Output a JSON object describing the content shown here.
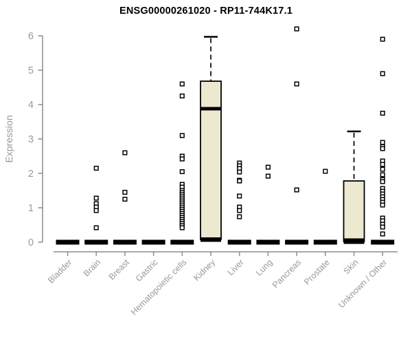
{
  "chart": {
    "title": "ENSG00000261020 - RP11-744K17.1",
    "ylabel": "Expression"
  },
  "chart_data": {
    "type": "boxplot",
    "title": "ENSG00000261020 - RP11-744K17.1",
    "xlabel": "",
    "ylabel": "Expression",
    "ylim": [
      0,
      6.3
    ],
    "yticks": [
      0,
      1,
      2,
      3,
      4,
      5,
      6
    ],
    "grid": false,
    "legend": "none",
    "categories": [
      "Bladder",
      "Brain",
      "Breast",
      "Gastric",
      "Hematopoietic cells",
      "Kidney",
      "Liver",
      "Lung",
      "Pancreas",
      "Prostate",
      "Skin",
      "Unknown / Other"
    ],
    "series": [
      {
        "category": "Bladder",
        "box": {
          "q1": 0,
          "median": 0,
          "q3": 0
        },
        "points": []
      },
      {
        "category": "Brain",
        "box": {
          "q1": 0,
          "median": 0,
          "q3": 0
        },
        "points": [
          2.15,
          1.28,
          1.12,
          1.02,
          0.92,
          0.42
        ]
      },
      {
        "category": "Breast",
        "box": {
          "q1": 0,
          "median": 0,
          "q3": 0
        },
        "points": [
          2.6,
          1.45,
          1.25
        ]
      },
      {
        "category": "Gastric",
        "box": {
          "q1": 0,
          "median": 0,
          "q3": 0
        },
        "points": []
      },
      {
        "category": "Hematopoietic cells",
        "box": {
          "q1": 0,
          "median": 0,
          "q3": 0
        },
        "points": [
          4.6,
          4.25,
          3.1,
          2.5,
          2.42,
          2.05,
          1.68,
          1.6,
          1.5,
          1.44,
          1.38,
          1.32,
          1.26,
          1.2,
          1.14,
          1.08,
          1.02,
          0.96,
          0.9,
          0.84,
          0.78,
          0.72,
          0.66,
          0.6,
          0.54,
          0.48,
          0.42
        ]
      },
      {
        "category": "Kidney",
        "box": {
          "q1": 0.08,
          "median": 3.88,
          "q3": 4.68,
          "whisker_high": 5.97
        },
        "points": []
      },
      {
        "category": "Liver",
        "box": {
          "q1": 0,
          "median": 0,
          "q3": 0
        },
        "points": [
          2.3,
          2.22,
          2.14,
          2.04,
          1.8,
          1.78,
          1.34,
          1.02,
          0.92,
          0.74
        ]
      },
      {
        "category": "Lung",
        "box": {
          "q1": 0,
          "median": 0,
          "q3": 0
        },
        "points": [
          2.18,
          1.92
        ]
      },
      {
        "category": "Pancreas",
        "box": {
          "q1": 0,
          "median": 0,
          "q3": 0
        },
        "points": [
          6.2,
          4.6,
          1.52
        ]
      },
      {
        "category": "Prostate",
        "box": {
          "q1": 0,
          "median": 0,
          "q3": 0
        },
        "points": [
          2.06
        ]
      },
      {
        "category": "Skin",
        "box": {
          "q1": 0.02,
          "median": 0.06,
          "q3": 1.78,
          "whisker_high": 3.22
        },
        "points": []
      },
      {
        "category": "Unknown / Other",
        "box": {
          "q1": 0,
          "median": 0,
          "q3": 0
        },
        "points": [
          5.9,
          4.9,
          3.75,
          2.9,
          2.78,
          2.72,
          2.36,
          2.26,
          2.12,
          1.96,
          1.82,
          1.76,
          1.56,
          1.48,
          1.4,
          1.32,
          1.24,
          1.16,
          1.08,
          0.7,
          0.62,
          0.52,
          0.44,
          0.24
        ]
      }
    ],
    "colors": {
      "box_fill": "#ede8d0",
      "box_border": "#000000",
      "median": "#000000",
      "whisker": "#000000",
      "point_fill": "#ffffff",
      "point_border": "#000000",
      "axis": "#8c8c8c",
      "tick_label": "#999999",
      "title": "#000000",
      "background": "#ffffff"
    }
  }
}
